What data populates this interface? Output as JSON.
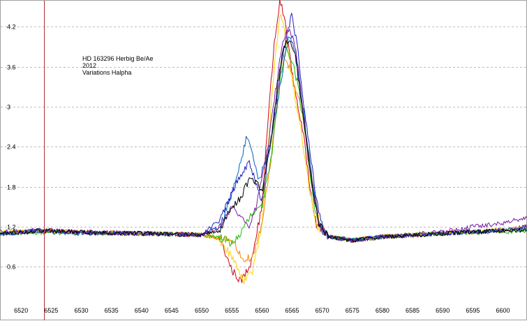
{
  "chart_data": {
    "type": "line",
    "title": "",
    "xlabel": "",
    "ylabel": "",
    "xlim": [
      6516.5,
      6604
    ],
    "ylim": [
      0.05,
      4.6
    ],
    "x_ticks": [
      6520,
      6525,
      6530,
      6535,
      6540,
      6545,
      6550,
      6555,
      6560,
      6565,
      6570,
      6575,
      6580,
      6585,
      6590,
      6595,
      6600
    ],
    "y_ticks": [
      0.6,
      1.2,
      1.8,
      2.4,
      3.0,
      3.6,
      4.2
    ],
    "y_tick_labels": [
      "0.6",
      "1.2",
      "1.8",
      "2.4",
      "3",
      "3.6",
      "4.2"
    ],
    "grid": "horizontal dashed",
    "legend": "none",
    "vertical_marker_x": 6523.8,
    "annotation_lines": [
      "HD 163296     Herbig Be/Ae",
      "2012",
      "Variations Halpha"
    ],
    "series": [
      {
        "color": "#d0021b",
        "points": [
          [
            6517,
            1.1
          ],
          [
            6523,
            1.15
          ],
          [
            6530,
            1.12
          ],
          [
            6540,
            1.1
          ],
          [
            6550,
            1.08
          ],
          [
            6553,
            1.02
          ],
          [
            6555,
            0.55
          ],
          [
            6556.5,
            0.38
          ],
          [
            6558,
            0.62
          ],
          [
            6560,
            1.5
          ],
          [
            6561,
            2.8
          ],
          [
            6562,
            3.9
          ],
          [
            6563,
            4.6
          ],
          [
            6564,
            4.2
          ],
          [
            6565,
            3.5
          ],
          [
            6566,
            3.0
          ],
          [
            6567,
            2.5
          ],
          [
            6568,
            1.8
          ],
          [
            6569,
            1.25
          ],
          [
            6571,
            1.05
          ],
          [
            6575,
            1.0
          ],
          [
            6580,
            1.05
          ],
          [
            6590,
            1.1
          ],
          [
            6600,
            1.15
          ],
          [
            6604,
            1.2
          ]
        ]
      },
      {
        "color": "#ffd400",
        "points": [
          [
            6517,
            1.12
          ],
          [
            6523,
            1.14
          ],
          [
            6530,
            1.12
          ],
          [
            6540,
            1.1
          ],
          [
            6550,
            1.08
          ],
          [
            6553,
            1.0
          ],
          [
            6555,
            0.75
          ],
          [
            6557,
            0.4
          ],
          [
            6558.5,
            0.55
          ],
          [
            6560,
            1.2
          ],
          [
            6561,
            2.4
          ],
          [
            6562,
            3.6
          ],
          [
            6563,
            4.4
          ],
          [
            6564,
            4.0
          ],
          [
            6565,
            3.4
          ],
          [
            6566,
            2.9
          ],
          [
            6567,
            2.3
          ],
          [
            6568,
            1.7
          ],
          [
            6569,
            1.2
          ],
          [
            6571,
            1.05
          ],
          [
            6575,
            1.0
          ],
          [
            6580,
            1.05
          ],
          [
            6590,
            1.1
          ],
          [
            6600,
            1.15
          ],
          [
            6604,
            1.18
          ]
        ]
      },
      {
        "color": "#f08a00",
        "points": [
          [
            6517,
            1.1
          ],
          [
            6523,
            1.14
          ],
          [
            6530,
            1.12
          ],
          [
            6540,
            1.1
          ],
          [
            6550,
            1.08
          ],
          [
            6555,
            1.0
          ],
          [
            6557,
            0.7
          ],
          [
            6558.5,
            0.75
          ],
          [
            6560,
            1.25
          ],
          [
            6561.5,
            2.2
          ],
          [
            6562.5,
            3.1
          ],
          [
            6563.5,
            3.8
          ],
          [
            6564.5,
            3.6
          ],
          [
            6565.5,
            3.3
          ],
          [
            6566.5,
            3.0
          ],
          [
            6567.5,
            2.4
          ],
          [
            6568.5,
            1.8
          ],
          [
            6569.5,
            1.25
          ],
          [
            6571,
            1.05
          ],
          [
            6575,
            1.0
          ],
          [
            6580,
            1.05
          ],
          [
            6590,
            1.1
          ],
          [
            6600,
            1.15
          ],
          [
            6604,
            1.2
          ]
        ]
      },
      {
        "color": "#22c000",
        "points": [
          [
            6517,
            1.1
          ],
          [
            6523,
            1.12
          ],
          [
            6530,
            1.1
          ],
          [
            6540,
            1.1
          ],
          [
            6550,
            1.08
          ],
          [
            6553,
            1.05
          ],
          [
            6555,
            0.95
          ],
          [
            6556.5,
            1.1
          ],
          [
            6558,
            1.35
          ],
          [
            6560,
            1.5
          ],
          [
            6561.5,
            2.2
          ],
          [
            6563,
            3.4
          ],
          [
            6564,
            3.9
          ],
          [
            6565,
            3.7
          ],
          [
            6566,
            3.3
          ],
          [
            6567,
            2.7
          ],
          [
            6568,
            2.0
          ],
          [
            6569,
            1.35
          ],
          [
            6571,
            1.05
          ],
          [
            6575,
            1.0
          ],
          [
            6580,
            1.05
          ],
          [
            6590,
            1.1
          ],
          [
            6600,
            1.12
          ],
          [
            6604,
            1.15
          ]
        ]
      },
      {
        "color": "#0060c0",
        "points": [
          [
            6517,
            1.1
          ],
          [
            6523,
            1.13
          ],
          [
            6530,
            1.1
          ],
          [
            6540,
            1.1
          ],
          [
            6550,
            1.08
          ],
          [
            6553,
            1.2
          ],
          [
            6555,
            1.7
          ],
          [
            6556.5,
            2.2
          ],
          [
            6557.5,
            2.55
          ],
          [
            6558.5,
            2.3
          ],
          [
            6559.5,
            1.9
          ],
          [
            6561,
            2.3
          ],
          [
            6562.5,
            3.0
          ],
          [
            6563.5,
            3.6
          ],
          [
            6564.5,
            4.1
          ],
          [
            6565.5,
            3.8
          ],
          [
            6566.5,
            3.2
          ],
          [
            6567.5,
            2.5
          ],
          [
            6568.5,
            1.8
          ],
          [
            6569.5,
            1.2
          ],
          [
            6571,
            1.05
          ],
          [
            6575,
            1.0
          ],
          [
            6580,
            1.05
          ],
          [
            6590,
            1.1
          ],
          [
            6600,
            1.15
          ],
          [
            6604,
            1.18
          ]
        ]
      },
      {
        "color": "#2020c0",
        "points": [
          [
            6517,
            1.1
          ],
          [
            6523,
            1.14
          ],
          [
            6530,
            1.12
          ],
          [
            6540,
            1.1
          ],
          [
            6550,
            1.08
          ],
          [
            6553,
            1.3
          ],
          [
            6555,
            1.7
          ],
          [
            6556.5,
            2.0
          ],
          [
            6558,
            2.15
          ],
          [
            6559,
            1.85
          ],
          [
            6560,
            1.6
          ],
          [
            6561.5,
            2.5
          ],
          [
            6563,
            3.5
          ],
          [
            6564,
            4.0
          ],
          [
            6565,
            4.4
          ],
          [
            6566,
            3.8
          ],
          [
            6567,
            3.0
          ],
          [
            6568,
            2.3
          ],
          [
            6569,
            1.6
          ],
          [
            6570,
            1.2
          ],
          [
            6571,
            1.05
          ],
          [
            6575,
            1.0
          ],
          [
            6580,
            1.05
          ],
          [
            6590,
            1.1
          ],
          [
            6600,
            1.15
          ],
          [
            6604,
            1.2
          ]
        ]
      },
      {
        "color": "#7a1fa8",
        "points": [
          [
            6517,
            1.12
          ],
          [
            6523,
            1.15
          ],
          [
            6530,
            1.12
          ],
          [
            6540,
            1.1
          ],
          [
            6550,
            1.08
          ],
          [
            6553,
            1.2
          ],
          [
            6555,
            1.5
          ],
          [
            6557,
            1.3
          ],
          [
            6558,
            1.2
          ],
          [
            6559,
            1.5
          ],
          [
            6561,
            2.4
          ],
          [
            6562.5,
            3.4
          ],
          [
            6563.5,
            4.0
          ],
          [
            6564.5,
            4.2
          ],
          [
            6565.5,
            3.9
          ],
          [
            6566.5,
            3.2
          ],
          [
            6567.5,
            2.4
          ],
          [
            6568.5,
            1.7
          ],
          [
            6569.5,
            1.2
          ],
          [
            6571,
            1.05
          ],
          [
            6575,
            1.0
          ],
          [
            6580,
            1.05
          ],
          [
            6590,
            1.12
          ],
          [
            6595,
            1.2
          ],
          [
            6600,
            1.25
          ],
          [
            6604,
            1.35
          ]
        ]
      },
      {
        "color": "#000000",
        "points": [
          [
            6517,
            1.1
          ],
          [
            6523,
            1.14
          ],
          [
            6530,
            1.12
          ],
          [
            6540,
            1.1
          ],
          [
            6550,
            1.08
          ],
          [
            6553,
            1.15
          ],
          [
            6555,
            1.5
          ],
          [
            6556.5,
            1.65
          ],
          [
            6558,
            1.95
          ],
          [
            6559,
            1.85
          ],
          [
            6560,
            1.75
          ],
          [
            6561.5,
            2.5
          ],
          [
            6562.5,
            3.3
          ],
          [
            6563.5,
            3.9
          ],
          [
            6564.5,
            4.0
          ],
          [
            6565.5,
            3.8
          ],
          [
            6566.5,
            3.1
          ],
          [
            6567.5,
            2.4
          ],
          [
            6568.5,
            1.7
          ],
          [
            6569.5,
            1.25
          ],
          [
            6571,
            1.05
          ],
          [
            6575,
            1.0
          ],
          [
            6580,
            1.05
          ],
          [
            6590,
            1.1
          ],
          [
            6600,
            1.15
          ],
          [
            6604,
            1.15
          ]
        ]
      }
    ]
  }
}
